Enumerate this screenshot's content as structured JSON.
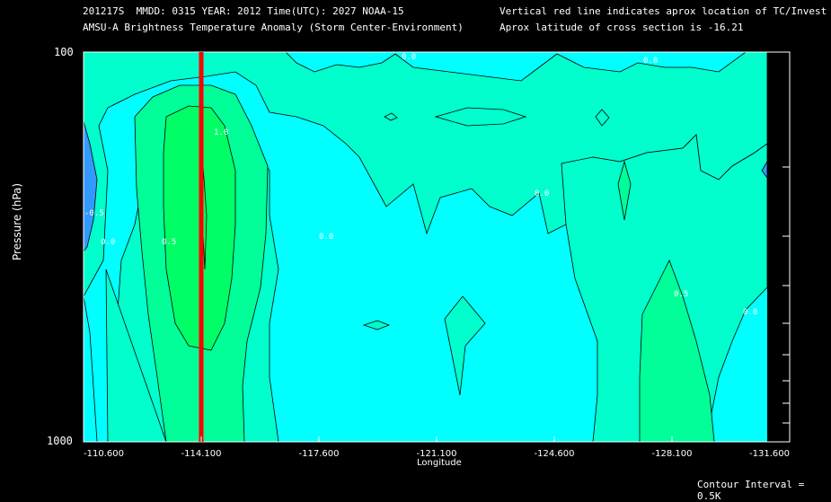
{
  "header": {
    "line1": "201217S  MMDD: 0315 YEAR: 2012 Time(UTC): 2027 NOAA-15",
    "line2": "AMSU-A Brightness Temperature Anomaly (Storm Center-Environment)",
    "line3": "Vertical red line indicates aprox location of TC/Invest",
    "line4": "Aprox latitude of cross section is -16.21"
  },
  "footer": {
    "contour_interval": "Contour Interval = 0.5K"
  },
  "colors": {
    "background": "#000000",
    "field_base": "#00ffff",
    "level_0": "#00ffcc",
    "level_0_5": "#00ff99",
    "level_1": "#00ff66",
    "negative": "#3399ff",
    "storm_line": "#ff0000"
  },
  "chart_data": {
    "type": "contour",
    "title": "AMSU-A Brightness Temperature Anomaly (Storm Center-Environment)",
    "xlabel": "Longitude",
    "ylabel": "Pressure (hPa)",
    "x_ticks": [
      "-110.600",
      "-114.100",
      "-117.600",
      "-121.100",
      "-124.600",
      "-128.100",
      "-131.600"
    ],
    "x_tick_values": [
      -110.6,
      -114.1,
      -117.6,
      -121.1,
      -124.6,
      -128.1,
      -131.6
    ],
    "y_tick_labels": [
      "100",
      "1000"
    ],
    "ylim": [
      100,
      1000
    ],
    "y_scale": "log",
    "xlim": [
      -110.6,
      -131.6
    ],
    "storm_longitude": -114.1,
    "contour_interval_K": 0.5,
    "contour_labels": [
      "0.0",
      "0.5",
      "1.0",
      "-0.5"
    ]
  }
}
